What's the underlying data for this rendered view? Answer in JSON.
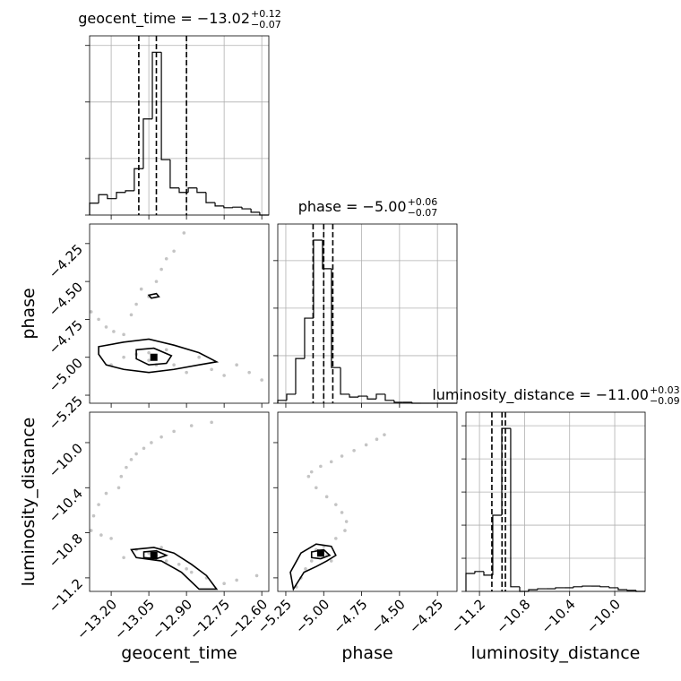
{
  "chart_data": {
    "type": "corner",
    "color": "#000000",
    "point_color": "#555555",
    "grid": true,
    "parameters": [
      {
        "name": "geocent_time",
        "title": "geocent_time = −13.02",
        "title_upper": "+0.12",
        "title_lower": "−0.07",
        "lim": [
          -13.286,
          -12.572
        ],
        "ticks": [
          {
            "value": -13.2,
            "label": "−13.20"
          },
          {
            "value": -13.05,
            "label": "−13.05"
          },
          {
            "value": -12.9,
            "label": "−12.90"
          },
          {
            "value": -12.75,
            "label": "−12.75"
          },
          {
            "value": -12.6,
            "label": "−12.60"
          }
        ],
        "quantiles": [
          -13.09,
          -13.02,
          -12.9
        ],
        "hist": {
          "bins": [
            -13.286,
            -13.25,
            -13.215,
            -13.179,
            -13.143,
            -13.108,
            -13.072,
            -13.036,
            -13.0,
            -12.965,
            -12.929,
            -12.893,
            -12.858,
            -12.822,
            -12.786,
            -12.751,
            -12.715,
            -12.679,
            -12.643,
            -12.608,
            -12.572
          ],
          "counts": [
            21,
            36,
            29,
            40,
            43,
            82,
            170,
            288,
            98,
            48,
            40,
            48,
            40,
            22,
            16,
            13,
            14,
            11,
            5,
            0
          ],
          "ylim": [
            0,
            317
          ],
          "yticks": [
            0,
            100,
            200,
            300
          ]
        }
      },
      {
        "name": "phase",
        "title": "phase = −5.00",
        "title_upper": "+0.06",
        "title_lower": "−0.07",
        "lim": [
          -5.303,
          -4.121
        ],
        "ticks": [
          {
            "value": -5.25,
            "label": "−5.25"
          },
          {
            "value": -5.0,
            "label": "−5.00"
          },
          {
            "value": -4.75,
            "label": "−4.75"
          },
          {
            "value": -4.5,
            "label": "−4.50"
          },
          {
            "value": -4.25,
            "label": "−4.25"
          }
        ],
        "quantiles": [
          -5.07,
          -5.0,
          -4.94
        ],
        "hist": {
          "bins": [
            -5.303,
            -5.244,
            -5.185,
            -5.126,
            -5.067,
            -5.008,
            -4.949,
            -4.889,
            -4.83,
            -4.771,
            -4.712,
            -4.653,
            -4.594,
            -4.535,
            -4.476,
            -4.417,
            -4.358,
            -4.299,
            -4.239,
            -4.18,
            -4.121
          ],
          "counts": [
            6,
            19,
            94,
            179,
            343,
            283,
            75,
            19,
            13,
            15,
            9,
            19,
            6,
            2,
            2,
            0,
            0,
            0,
            0,
            0
          ],
          "ylim": [
            0,
            377
          ],
          "yticks": [
            0,
            100,
            200,
            300
          ]
        }
      },
      {
        "name": "luminosity_distance",
        "title": "luminosity_distance = −11.00",
        "title_upper": "+0.03",
        "title_lower": "−0.09",
        "lim": [
          -11.32,
          -9.73
        ],
        "ticks": [
          {
            "value": -11.2,
            "label": "−11.2"
          },
          {
            "value": -10.8,
            "label": "−10.8"
          },
          {
            "value": -10.4,
            "label": "−10.4"
          },
          {
            "value": -10.0,
            "label": "−10.0"
          }
        ],
        "quantiles": [
          -11.09,
          -11.0,
          -10.97
        ],
        "hist": {
          "bins": [
            -11.32,
            -11.241,
            -11.161,
            -11.082,
            -11.002,
            -10.923,
            -10.843,
            -10.764,
            -10.684,
            -10.605,
            -10.525,
            -10.446,
            -10.366,
            -10.287,
            -10.207,
            -10.128,
            -10.048,
            -9.969,
            -9.889,
            -9.81,
            -9.73
          ],
          "counts": [
            54,
            60,
            49,
            230,
            492,
            14,
            0,
            5,
            8,
            8,
            11,
            11,
            14,
            16,
            16,
            14,
            11,
            5,
            3,
            0
          ],
          "ylim": [
            0,
            541
          ],
          "yticks": [
            0,
            100,
            200,
            300,
            400,
            500
          ]
        }
      }
    ],
    "panels": [
      {
        "x": [
          -13.28,
          -13.25,
          -13.22,
          -13.19,
          -13.15,
          -13.12,
          -13.1,
          -13.08,
          -13.05,
          -13.02,
          -13.0,
          -12.98,
          -12.95,
          -12.91,
          -13.2,
          -13.15,
          -13.1,
          -13.05,
          -13.02,
          -12.98,
          -12.95,
          -12.9,
          -12.85,
          -12.8,
          -12.75,
          -12.7,
          -12.65,
          -12.6,
          -13.05,
          -13.03
        ],
        "y": [
          -4.7,
          -4.75,
          -4.8,
          -4.83,
          -4.85,
          -4.72,
          -4.65,
          -4.55,
          -4.6,
          -4.5,
          -4.42,
          -4.35,
          -4.3,
          -4.18,
          -5.05,
          -5.0,
          -4.98,
          -5.02,
          -5.05,
          -4.95,
          -5.05,
          -5.1,
          -5.0,
          -5.08,
          -5.12,
          -5.05,
          -5.1,
          -5.15,
          -4.97,
          -5.0
        ],
        "contours": [
          {
            "x": [
              -13.25,
              -13.15,
              -13.05,
              -12.95,
              -12.85,
              -12.78,
              -12.85,
              -12.95,
              -13.05,
              -13.15,
              -13.22,
              -13.25
            ],
            "y": [
              -4.93,
              -4.9,
              -4.88,
              -4.92,
              -4.97,
              -5.03,
              -5.05,
              -5.08,
              -5.1,
              -5.08,
              -5.05,
              -4.98
            ]
          },
          {
            "x": [
              -13.1,
              -13.03,
              -12.96,
              -12.98,
              -13.05,
              -13.1
            ],
            "y": [
              -4.95,
              -4.94,
              -4.99,
              -5.04,
              -5.05,
              -5.01
            ]
          },
          {
            "x": [
              -13.05,
              -13.02,
              -13.01,
              -13.04
            ],
            "y": [
              -4.59,
              -4.58,
              -4.6,
              -4.61
            ]
          }
        ],
        "mode": [
          -13.03,
          -5.0
        ]
      },
      {
        "x": [
          -13.28,
          -13.24,
          -13.2,
          -13.17,
          -13.16,
          -13.14,
          -13.12,
          -13.1,
          -13.07,
          -13.04,
          -13.0,
          -12.95,
          -12.88,
          -12.8,
          -13.22,
          -13.25,
          -13.27,
          -13.1,
          -13.05,
          -13.02,
          -12.98,
          -12.93,
          -12.88,
          -12.82,
          -12.75,
          -12.7,
          -12.62,
          -13.15,
          -13.0,
          -12.9
        ],
        "y": [
          -10.78,
          -10.82,
          -10.85,
          -10.4,
          -10.3,
          -10.22,
          -10.15,
          -10.1,
          -10.05,
          -10.0,
          -9.95,
          -9.9,
          -9.85,
          -9.82,
          -10.45,
          -10.55,
          -10.65,
          -10.95,
          -10.98,
          -11.0,
          -11.05,
          -11.08,
          -11.15,
          -11.2,
          -11.25,
          -11.22,
          -11.18,
          -11.02,
          -10.93,
          -11.12
        ],
        "contours": [
          {
            "x": [
              -13.12,
              -13.03,
              -12.95,
              -12.88,
              -12.82,
              -12.78,
              -12.85,
              -12.92,
              -13.0,
              -13.1
            ],
            "y": [
              -10.95,
              -10.93,
              -10.98,
              -11.08,
              -11.18,
              -11.3,
              -11.3,
              -11.15,
              -11.05,
              -11.02
            ]
          },
          {
            "x": [
              -13.07,
              -13.02,
              -12.98,
              -13.02,
              -13.07
            ],
            "y": [
              -10.97,
              -10.96,
              -11.0,
              -11.03,
              -11.02
            ]
          }
        ],
        "mode": [
          -13.03,
          -11.0
        ]
      },
      {
        "x": [
          -4.6,
          -4.65,
          -4.72,
          -4.8,
          -4.88,
          -4.95,
          -5.02,
          -5.08,
          -5.1,
          -5.05,
          -4.98,
          -4.92,
          -4.88,
          -4.85,
          -4.86,
          -4.92,
          -5.0,
          -5.03,
          -4.98,
          -5.08,
          -5.12,
          -5.15,
          -5.18,
          -4.95,
          -5.05
        ],
        "y": [
          -9.93,
          -9.97,
          -10.02,
          -10.07,
          -10.12,
          -10.17,
          -10.21,
          -10.26,
          -10.3,
          -10.4,
          -10.48,
          -10.55,
          -10.62,
          -10.7,
          -10.78,
          -10.85,
          -10.92,
          -10.98,
          -11.0,
          -11.05,
          -11.12,
          -11.2,
          -11.28,
          -11.05,
          -10.95
        ],
        "contours": [
          {
            "x": [
              -5.15,
              -5.05,
              -4.95,
              -4.92,
              -4.98,
              -5.05,
              -5.13,
              -5.2,
              -5.22
            ],
            "y": [
              -10.98,
              -10.9,
              -10.92,
              -11.0,
              -11.05,
              -11.1,
              -11.15,
              -11.3,
              -11.15
            ]
          },
          {
            "x": [
              -5.08,
              -5.0,
              -4.96,
              -5.02,
              -5.08
            ],
            "y": [
              -10.97,
              -10.95,
              -11.0,
              -11.03,
              -11.02
            ]
          }
        ],
        "mode": [
          -5.02,
          -10.98
        ]
      }
    ]
  }
}
